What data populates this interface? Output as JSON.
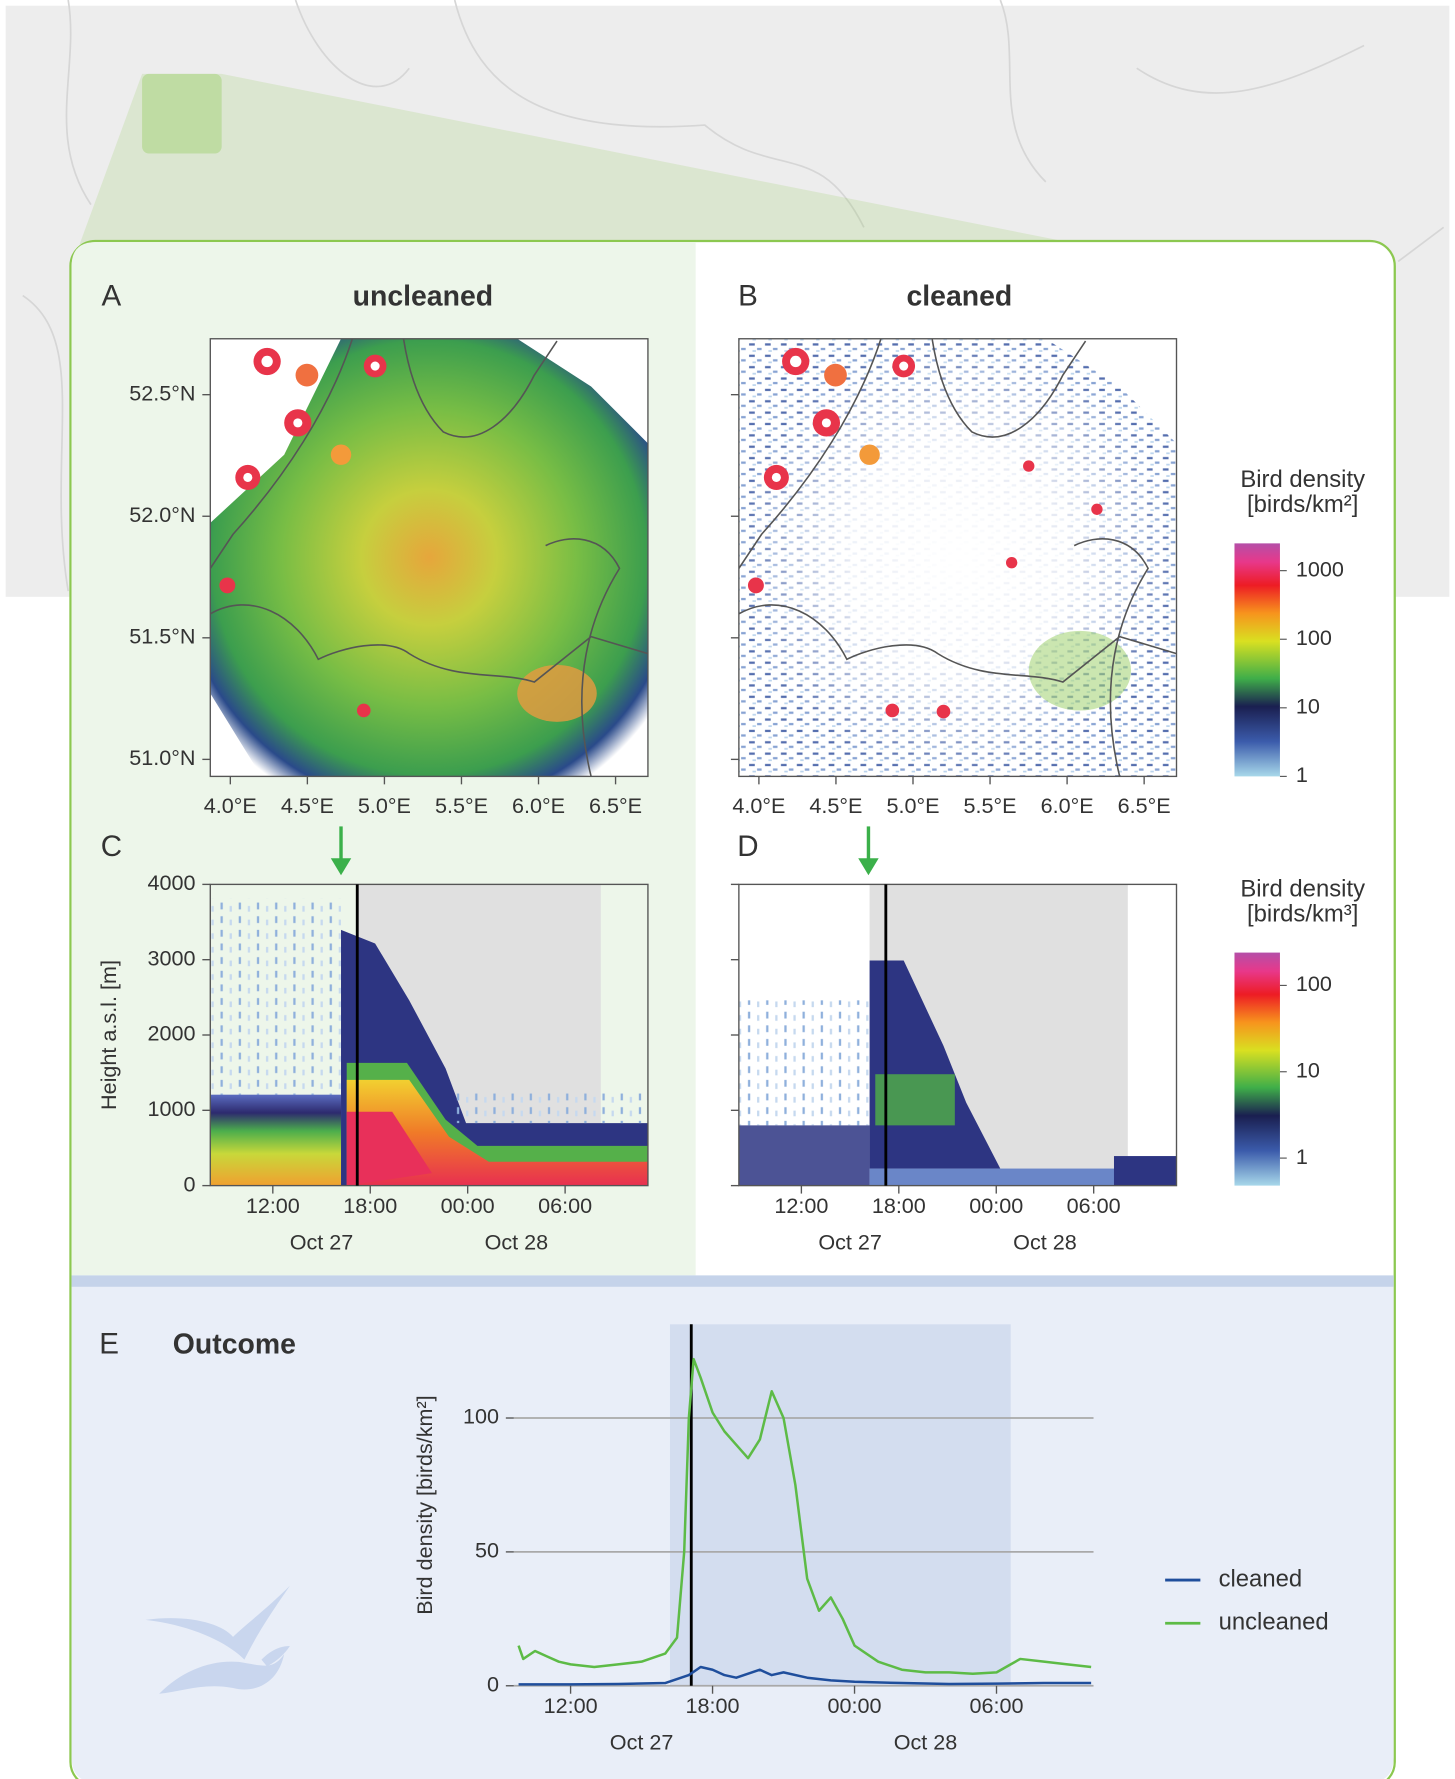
{
  "chart_data": [
    {
      "type": "map",
      "label": "A",
      "title": "uncleaned",
      "xlim": [
        3.87,
        6.71
      ],
      "ylim": [
        50.93,
        52.73
      ],
      "xticks": [
        {
          "value": 4.0,
          "label": "4.0°E"
        },
        {
          "value": 4.5,
          "label": "4.5°E"
        },
        {
          "value": 5.0,
          "label": "5.0°E"
        },
        {
          "value": 5.5,
          "label": "5.5°E"
        },
        {
          "value": 6.0,
          "label": "6.0°E"
        },
        {
          "value": 6.5,
          "label": "6.5°E"
        }
      ],
      "yticks": [
        {
          "value": 51.0,
          "label": "51.0°N"
        },
        {
          "value": 51.5,
          "label": "51.5°N"
        },
        {
          "value": 52.0,
          "label": "52.0°N"
        },
        {
          "value": 52.5,
          "label": "52.5°N"
        }
      ]
    },
    {
      "type": "map",
      "label": "B",
      "title": "cleaned",
      "xlim": [
        3.87,
        6.71
      ],
      "ylim": [
        50.93,
        52.73
      ],
      "xticks": [
        {
          "value": 4.0,
          "label": "4.0°E"
        },
        {
          "value": 4.5,
          "label": "4.5°E"
        },
        {
          "value": 5.0,
          "label": "5.0°E"
        },
        {
          "value": 5.5,
          "label": "5.5°E"
        },
        {
          "value": 6.0,
          "label": "6.0°E"
        },
        {
          "value": 6.5,
          "label": "6.5°E"
        }
      ],
      "yticks": [
        51.0,
        51.5,
        52.0,
        52.5
      ],
      "ytick_labels": false,
      "colorbar": {
        "label": [
          "Bird density",
          "[birds/km²]"
        ],
        "log": true,
        "lim": [
          1,
          2500
        ],
        "ticks": [
          1,
          10,
          100,
          1000
        ]
      }
    },
    {
      "type": "heatmap",
      "label": "C",
      "ylabel": "Height a.s.l. [m]",
      "xlim": [
        8.15,
        35.1
      ],
      "ylim": [
        0,
        4000
      ],
      "xticks": [
        {
          "value": 12,
          "label": "12:00"
        },
        {
          "value": 18,
          "label": "18:00"
        },
        {
          "value": 24,
          "label": "00:00"
        },
        {
          "value": 30,
          "label": "06:00"
        }
      ],
      "date_labels": [
        "Oct 27",
        "Oct 28"
      ],
      "yticks": [
        0,
        1000,
        2000,
        3000,
        4000
      ],
      "night": [
        17.2,
        32.2
      ],
      "marker": 17.2
    },
    {
      "type": "heatmap",
      "label": "D",
      "xlim": [
        8.15,
        35.1
      ],
      "ylim": [
        0,
        4000
      ],
      "xticks": [
        {
          "value": 12,
          "label": "12:00"
        },
        {
          "value": 18,
          "label": "18:00"
        },
        {
          "value": 24,
          "label": "00:00"
        },
        {
          "value": 30,
          "label": "06:00"
        }
      ],
      "date_labels": [
        "Oct 27",
        "Oct 28"
      ],
      "yticks": [
        0,
        1000,
        2000,
        3000,
        4000
      ],
      "ytick_labels": false,
      "night": [
        16.2,
        32.1
      ],
      "marker": 17.2,
      "colorbar": {
        "label": [
          "Bird density",
          "[birds/km³]"
        ],
        "log": true,
        "lim": [
          0.48,
          240
        ],
        "ticks": [
          1,
          10,
          100
        ]
      }
    },
    {
      "type": "line",
      "label": "E",
      "title": "Outcome",
      "ylabel": "Bird density [birds/km²]",
      "xlim": [
        9.6,
        34.1
      ],
      "ylim": [
        0,
        135
      ],
      "xticks": [
        {
          "value": 12,
          "label": "12:00"
        },
        {
          "value": 18,
          "label": "18:00"
        },
        {
          "value": 24,
          "label": "00:00"
        },
        {
          "value": 30,
          "label": "06:00"
        }
      ],
      "date_labels": [
        "Oct 27",
        "Oct 28"
      ],
      "yticks": [
        0,
        50,
        100
      ],
      "grid": true,
      "night": [
        16.2,
        30.6
      ],
      "marker": 17.1,
      "legend": "right",
      "series": [
        {
          "name": "cleaned",
          "color": "#1f4e9c",
          "x": [
            9.8,
            12,
            14,
            16,
            17,
            17.5,
            18,
            18.5,
            19,
            20,
            20.5,
            21,
            22,
            23,
            24,
            26,
            28,
            30,
            32,
            34
          ],
          "values": [
            0.5,
            0.5,
            0.7,
            1,
            4,
            7,
            6,
            4,
            3,
            6,
            4,
            5,
            3,
            2,
            1.5,
            1,
            0.7,
            0.8,
            1,
            1
          ]
        },
        {
          "name": "uncleaned",
          "color": "#5dbb46",
          "x": [
            9.8,
            10,
            10.5,
            11,
            11.5,
            12,
            13,
            14,
            15,
            16,
            16.5,
            16.8,
            17,
            17.2,
            17.5,
            18,
            18.5,
            19,
            19.5,
            20,
            20.5,
            21,
            21.5,
            22,
            22.5,
            23,
            23.5,
            24,
            25,
            26,
            27,
            28,
            29,
            30,
            30.6,
            31,
            32,
            33,
            34
          ],
          "values": [
            15,
            10,
            13,
            11,
            9,
            8,
            7,
            8,
            9,
            12,
            18,
            50,
            100,
            122,
            115,
            102,
            95,
            90,
            85,
            92,
            110,
            100,
            75,
            40,
            28,
            33,
            25,
            15,
            9,
            6,
            5,
            5,
            4.5,
            5,
            8,
            10,
            9,
            8,
            7
          ]
        }
      ]
    }
  ]
}
